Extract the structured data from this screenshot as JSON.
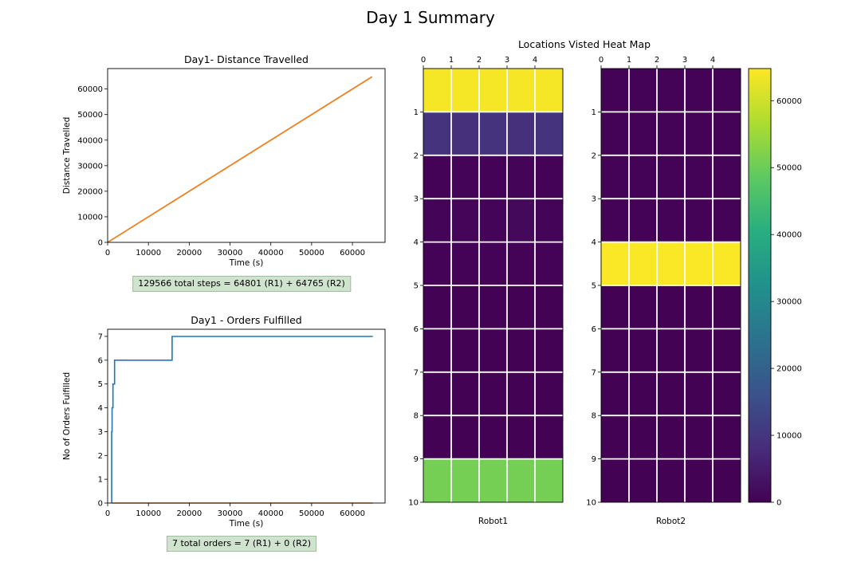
{
  "figure_title": "Day 1 Summary",
  "heatmap_suptitle": "Locations Visted Heat Map",
  "distance_summary": "129566 total steps = 64801 (R1) + 64765 (R2)",
  "orders_summary": "7 total orders = 7 (R1) + 0 (R2)",
  "colors": {
    "series1": "#1f77b4",
    "series2": "#ff7f0e",
    "summary_box": "#cfe3cf"
  },
  "chart_data": [
    {
      "type": "line",
      "title": "Day1- Distance Travelled",
      "xlabel": "Time (s)",
      "ylabel": "Distance Travelled",
      "xlim": [
        0,
        68000
      ],
      "ylim": [
        0,
        68000
      ],
      "xticks": [
        0,
        10000,
        20000,
        30000,
        40000,
        50000,
        60000
      ],
      "yticks": [
        0,
        10000,
        20000,
        30000,
        40000,
        50000,
        60000
      ],
      "grid": false,
      "series": [
        {
          "x": [
            0,
            64801
          ],
          "y": [
            0,
            64801
          ],
          "color": "#1f77b4"
        },
        {
          "x": [
            0,
            64765
          ],
          "y": [
            0,
            64765
          ],
          "color": "#ff7f0e"
        }
      ]
    },
    {
      "type": "line",
      "title": "Day1 - Orders Fulfilled",
      "xlabel": "Time (s)",
      "ylabel": "No of Orders Fulfilled",
      "xlim": [
        0,
        68000
      ],
      "ylim": [
        0,
        7.3
      ],
      "xticks": [
        0,
        10000,
        20000,
        30000,
        40000,
        50000,
        60000
      ],
      "yticks": [
        0,
        1,
        2,
        3,
        4,
        5,
        6,
        7
      ],
      "grid": false,
      "series": [
        {
          "x": [
            1000,
            1000,
            1100,
            1100,
            1300,
            1300,
            1700,
            1700,
            15800,
            15800,
            65000
          ],
          "y": [
            0,
            3,
            3,
            4,
            4,
            5,
            5,
            6,
            6,
            7,
            7
          ],
          "color": "#1f77b4",
          "step": true
        },
        {
          "x": [
            1000,
            65000
          ],
          "y": [
            0,
            0
          ],
          "color": "#ff7f0e"
        }
      ]
    },
    {
      "type": "heatmap",
      "xlabel": "Robot1",
      "xticks": [
        0,
        1,
        2,
        3,
        4
      ],
      "yticks": [
        1,
        2,
        3,
        4,
        5,
        6,
        7,
        8,
        9,
        10
      ],
      "values": [
        [
          64000,
          64000,
          64000,
          64000,
          64000
        ],
        [
          9500,
          9000,
          9500,
          9000,
          9500
        ],
        [
          300,
          500,
          300,
          500,
          300
        ],
        [
          500,
          1000,
          500,
          1500,
          500
        ],
        [
          300,
          300,
          300,
          300,
          300
        ],
        [
          200,
          200,
          200,
          200,
          200
        ],
        [
          200,
          200,
          200,
          200,
          200
        ],
        [
          200,
          200,
          200,
          200,
          200
        ],
        [
          200,
          200,
          200,
          200,
          200
        ],
        [
          51000,
          51000,
          51000,
          51000,
          51000
        ]
      ]
    },
    {
      "type": "heatmap",
      "xlabel": "Robot2",
      "xticks": [
        0,
        1,
        2,
        3,
        4
      ],
      "yticks": [
        1,
        2,
        3,
        4,
        5,
        6,
        7,
        8,
        9,
        10
      ],
      "values": [
        [
          300,
          300,
          300,
          300,
          300
        ],
        [
          300,
          300,
          300,
          300,
          300
        ],
        [
          300,
          300,
          300,
          300,
          300
        ],
        [
          300,
          300,
          300,
          300,
          300
        ],
        [
          64500,
          64500,
          64500,
          64500,
          64500
        ],
        [
          200,
          200,
          200,
          200,
          200
        ],
        [
          200,
          200,
          200,
          200,
          200
        ],
        [
          200,
          200,
          200,
          200,
          200
        ],
        [
          200,
          200,
          200,
          200,
          200
        ],
        [
          200,
          200,
          200,
          200,
          200
        ]
      ]
    }
  ],
  "colorbar": {
    "colormap": "viridis",
    "range": [
      0,
      64800
    ],
    "ticks": [
      0,
      10000,
      20000,
      30000,
      40000,
      50000,
      60000
    ]
  }
}
